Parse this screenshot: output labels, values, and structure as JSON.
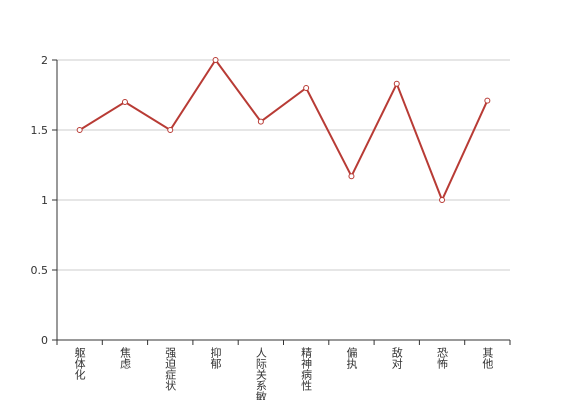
{
  "chart_data": {
    "type": "line",
    "categories": [
      "躯体化",
      "焦虑",
      "强迫症状",
      "抑郁",
      "人际关系敏感",
      "精神病性",
      "偏执",
      "敌对",
      "恐怖",
      "其他"
    ],
    "series": [
      {
        "color": "#b83b35",
        "values": [
          1.5,
          1.7,
          1.5,
          2.0,
          1.56,
          1.8,
          1.17,
          1.83,
          1.0,
          1.71
        ]
      }
    ],
    "ylim": [
      0,
      2
    ],
    "yticks": [
      0,
      0.5,
      1,
      1.5,
      2
    ],
    "grid": true
  }
}
